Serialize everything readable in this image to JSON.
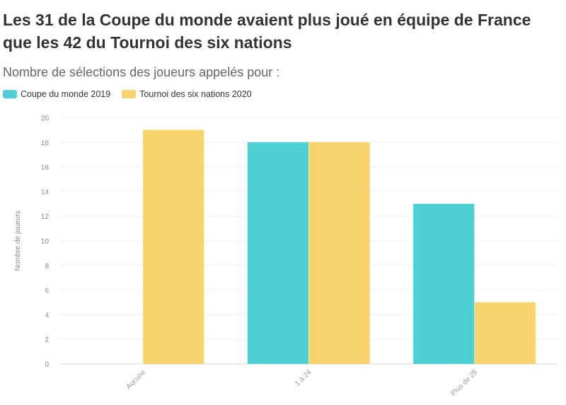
{
  "title": "Les 31 de la Coupe du monde avaient plus joué en équipe de France que les 42 du Tournoi des six nations",
  "subtitle": "Nombre de sélections des joueurs appelés pour :",
  "chart_data": {
    "type": "bar",
    "categories": [
      "Aucune",
      "1 à 24",
      "Plus de 25"
    ],
    "series": [
      {
        "name": "Coupe du monde 2019",
        "values": [
          0,
          18,
          13
        ],
        "color": "#4ecfd3"
      },
      {
        "name": "Tournoi des six nations 2020",
        "values": [
          19,
          18,
          5
        ],
        "color": "#f8d36b"
      }
    ],
    "ylabel": "Nombre de joueurs",
    "xlabel": "",
    "ylim": [
      0,
      20
    ],
    "yticks": [
      0,
      2,
      4,
      6,
      8,
      10,
      12,
      14,
      16,
      18,
      20
    ],
    "grid": true,
    "legend_position": "top-left"
  }
}
